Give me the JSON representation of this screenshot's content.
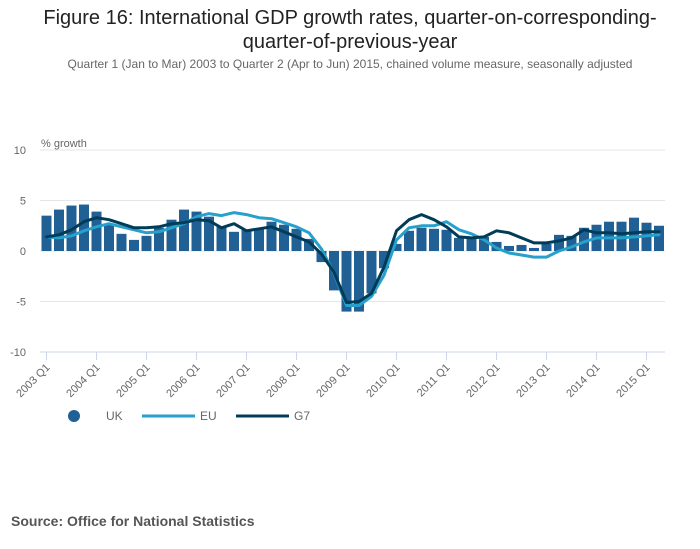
{
  "title": "Figure 16: International GDP growth rates, quarter-on-corresponding-quarter-of-previous-year",
  "title_line1": "Figure 16: International GDP growth rates, quarter-on-corresponding-",
  "title_line2": "quarter-of-previous-year",
  "subtitle": "Quarter 1 (Jan to Mar) 2003 to Quarter 2 (Apr to Jun) 2015, chained volume measure, seasonally adjusted",
  "source": "Source: Office for National Statistics",
  "colors": {
    "UK": "#206095",
    "EU": "#27a0cc",
    "G7": "#003c57",
    "grid": "#e6e6e6",
    "axis": "#ccd6eb"
  },
  "chart_data": {
    "type": "bar+line",
    "title": "Figure 16: International GDP growth rates, quarter-on-corresponding-quarter-of-previous-year",
    "subtitle": "Quarter 1 (Jan to Mar) 2003 to Quarter 2 (Apr to Jun) 2015, chained volume measure, seasonally adjusted",
    "xlabel": "",
    "ylabel": "% growth",
    "ylim": [
      -10,
      10
    ],
    "yticks": [
      10,
      5,
      0,
      -5,
      -10
    ],
    "grid": true,
    "legend_position": "bottom-left",
    "x": [
      "2003 Q1",
      "2003 Q2",
      "2003 Q3",
      "2003 Q4",
      "2004 Q1",
      "2004 Q2",
      "2004 Q3",
      "2004 Q4",
      "2005 Q1",
      "2005 Q2",
      "2005 Q3",
      "2005 Q4",
      "2006 Q1",
      "2006 Q2",
      "2006 Q3",
      "2006 Q4",
      "2007 Q1",
      "2007 Q2",
      "2007 Q3",
      "2007 Q4",
      "2008 Q1",
      "2008 Q2",
      "2008 Q3",
      "2008 Q4",
      "2009 Q1",
      "2009 Q2",
      "2009 Q3",
      "2009 Q4",
      "2010 Q1",
      "2010 Q2",
      "2010 Q3",
      "2010 Q4",
      "2011 Q1",
      "2011 Q2",
      "2011 Q3",
      "2011 Q4",
      "2012 Q1",
      "2012 Q2",
      "2012 Q3",
      "2012 Q4",
      "2013 Q1",
      "2013 Q2",
      "2013 Q3",
      "2013 Q4",
      "2014 Q1",
      "2014 Q2",
      "2014 Q3",
      "2014 Q4",
      "2015 Q1",
      "2015 Q2"
    ],
    "xtick_labels": [
      "2003 Q1",
      "2004 Q1",
      "2005 Q1",
      "2006 Q1",
      "2007 Q1",
      "2008 Q1",
      "2009 Q1",
      "2010 Q1",
      "2011 Q1",
      "2012 Q1",
      "2013 Q1",
      "2014 Q1",
      "2015 Q1"
    ],
    "series": [
      {
        "name": "UK",
        "type": "bar",
        "values": [
          3.5,
          4.1,
          4.5,
          4.6,
          3.9,
          2.6,
          1.7,
          1.1,
          1.5,
          2.3,
          3.1,
          4.1,
          3.9,
          3.4,
          2.4,
          1.9,
          2.1,
          2.2,
          2.9,
          2.6,
          2.2,
          1.2,
          -1.1,
          -3.9,
          -6.0,
          -6.0,
          -4.2,
          -1.7,
          0.7,
          2.0,
          2.3,
          2.2,
          2.1,
          1.3,
          1.3,
          1.4,
          0.9,
          0.5,
          0.6,
          0.3,
          0.7,
          1.6,
          1.5,
          2.3,
          2.6,
          2.9,
          2.9,
          3.3,
          2.8,
          2.5
        ]
      },
      {
        "name": "EU",
        "type": "line",
        "values": [
          1.4,
          1.3,
          1.5,
          2.0,
          2.4,
          2.7,
          2.4,
          2.1,
          1.8,
          1.9,
          2.3,
          2.7,
          3.4,
          3.7,
          3.5,
          3.8,
          3.6,
          3.3,
          3.2,
          2.8,
          2.4,
          1.8,
          0.2,
          -2.2,
          -5.4,
          -5.4,
          -4.5,
          -2.4,
          1.1,
          2.3,
          2.5,
          2.5,
          2.9,
          2.1,
          1.7,
          1.1,
          0.3,
          -0.2,
          -0.4,
          -0.6,
          -0.6,
          0.0,
          0.4,
          0.9,
          1.3,
          1.3,
          1.3,
          1.4,
          1.5,
          1.6
        ]
      },
      {
        "name": "G7",
        "type": "line",
        "values": [
          1.4,
          1.6,
          2.1,
          2.9,
          3.3,
          3.1,
          2.7,
          2.3,
          2.3,
          2.4,
          2.7,
          2.8,
          3.1,
          3.0,
          2.3,
          2.7,
          2.0,
          2.2,
          2.4,
          1.9,
          1.4,
          0.9,
          -0.3,
          -2.1,
          -5.1,
          -5.0,
          -4.2,
          -1.6,
          2.0,
          3.1,
          3.6,
          3.1,
          2.4,
          1.4,
          1.3,
          1.4,
          2.0,
          1.8,
          1.3,
          0.8,
          0.8,
          1.0,
          1.3,
          2.1,
          1.8,
          1.8,
          1.7,
          1.8,
          1.9,
          1.9
        ]
      }
    ],
    "legend": [
      {
        "name": "UK",
        "symbol": "circle"
      },
      {
        "name": "EU",
        "symbol": "line"
      },
      {
        "name": "G7",
        "symbol": "line"
      }
    ]
  }
}
